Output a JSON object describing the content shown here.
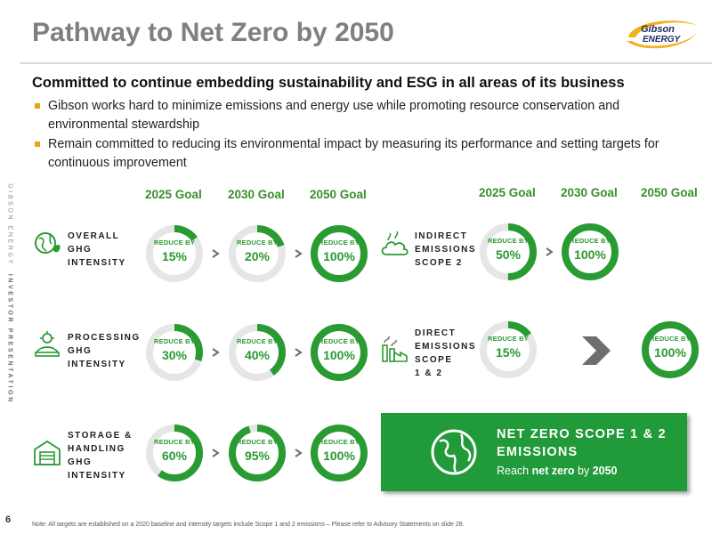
{
  "sidebar": {
    "company": "GIBSON ENERGY",
    "deck": "INVESTOR PRESENTATION",
    "page_number": "6"
  },
  "header": {
    "title": "Pathway to Net Zero by 2050",
    "logo_text": "GIBSON ENERGY",
    "logo_icon": "gibson-swoosh-logo"
  },
  "intro": {
    "heading": "Committed to continue embedding sustainability and ESG in all areas of its business",
    "bullets": [
      "Gibson works hard to minimize emissions and energy use while promoting resource conservation and environmental stewardship",
      "Remain committed to reducing its environmental impact by measuring its performance and setting targets for continuous improvement"
    ]
  },
  "colors": {
    "accent_green": "#2a9a33",
    "ring_bg": "#e6e6e6",
    "arrow_gray": "#6e6e6e",
    "box_green": "#219a3a",
    "bullet_gold": "#e8a317"
  },
  "left_columns": [
    "2025 Goal",
    "2030 Goal",
    "2050 Goal"
  ],
  "right_columns": [
    "2025 Goal",
    "2030 Goal",
    "2050 Goal"
  ],
  "rows_left": [
    {
      "label_lines": [
        "OVERALL",
        "GHG",
        "INTENSITY"
      ],
      "icon": "globe-leaf-icon",
      "goals": [
        {
          "label": "REDUCE BY",
          "value": "15%",
          "fraction": 0.15
        },
        {
          "label": "REDUCE BY",
          "value": "20%",
          "fraction": 0.2
        },
        {
          "label": "REDUCE BY",
          "value": "100%",
          "fraction": 1.0
        }
      ]
    },
    {
      "label_lines": [
        "PROCESSING",
        "GHG",
        "INTENSITY"
      ],
      "icon": "processing-icon",
      "goals": [
        {
          "label": "REDUCE BY",
          "value": "30%",
          "fraction": 0.3
        },
        {
          "label": "REDUCE BY",
          "value": "40%",
          "fraction": 0.4
        },
        {
          "label": "REDUCE BY",
          "value": "100%",
          "fraction": 1.0
        }
      ]
    },
    {
      "label_lines": [
        "STORAGE &",
        "HANDLING",
        "GHG",
        "INTENSITY"
      ],
      "icon": "storage-warehouse-icon",
      "goals": [
        {
          "label": "REDUCE BY",
          "value": "60%",
          "fraction": 0.6
        },
        {
          "label": "REDUCE BY",
          "value": "95%",
          "fraction": 0.95
        },
        {
          "label": "REDUCE BY",
          "value": "100%",
          "fraction": 1.0
        }
      ]
    }
  ],
  "rows_right": [
    {
      "label_lines": [
        "INDIRECT",
        "EMISSIONS",
        "SCOPE 2"
      ],
      "icon": "cloud-emissions-icon",
      "goals": [
        {
          "label": "REDUCE BY",
          "value": "50%",
          "fraction": 0.5
        },
        {
          "label": "REDUCE BY",
          "value": "100%",
          "fraction": 1.0
        }
      ]
    },
    {
      "label_lines": [
        "DIRECT",
        "EMISSIONS",
        "SCOPE",
        "1 & 2"
      ],
      "icon": "factory-emissions-icon",
      "goals": [
        {
          "label": "REDUCE BY",
          "value": "15%",
          "fraction": 0.15
        },
        {
          "label": "REDUCE BY",
          "value": "100%",
          "fraction": 1.0
        }
      ]
    }
  ],
  "net_zero_box": {
    "title": "NET ZERO SCOPE 1 & 2 EMISSIONS",
    "sub_prefix": "Reach ",
    "sub_bold1": "net zero",
    "sub_mid": " by ",
    "sub_bold2": "2050",
    "icon": "globe-icon"
  },
  "footnote": "Note: All targets are established on a 2020 baseline and intensity targets include Scope 1 and 2 emissions – Please refer to Advisory Statements on slide 28."
}
